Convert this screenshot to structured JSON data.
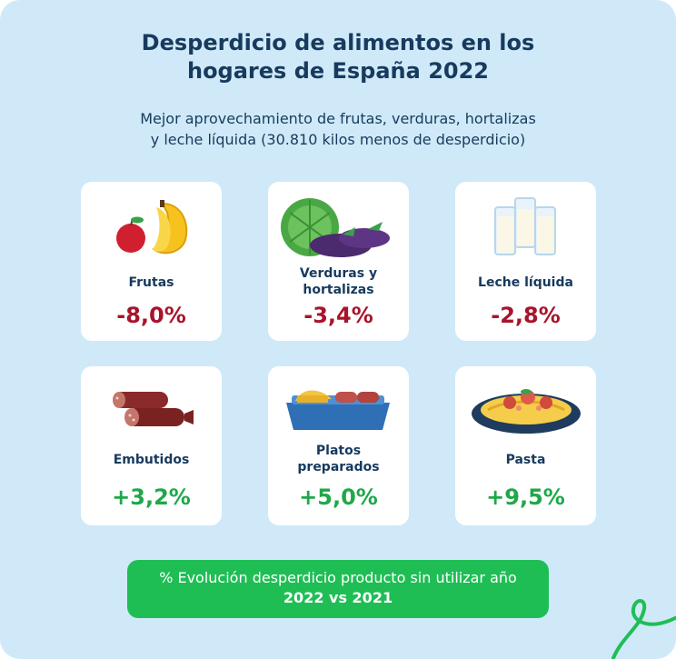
{
  "title_line1": "Desperdicio de alimentos en los",
  "title_line2": "hogares de España 2022",
  "subtitle_line1": "Mejor aprovechamiento de frutas, verduras, hortalizas",
  "subtitle_line2": "y leche líquida (30.810 kilos menos de desperdicio)",
  "items": [
    {
      "label_line1": "Frutas",
      "label_line2": "",
      "value": "-8,0%",
      "icon": "fruit-icon"
    },
    {
      "label_line1": "Verduras y",
      "label_line2": "hortalizas",
      "value": "-3,4%",
      "icon": "vegetables-icon"
    },
    {
      "label_line1": "Leche líquida",
      "label_line2": "",
      "value": "-2,8%",
      "icon": "milk-icon"
    },
    {
      "label_line1": "Embutidos",
      "label_line2": "",
      "value": "+3,2%",
      "icon": "sausage-icon"
    },
    {
      "label_line1": "Platos",
      "label_line2": "preparados",
      "value": "+5,0%",
      "icon": "ready-meal-icon"
    },
    {
      "label_line1": "Pasta",
      "label_line2": "",
      "value": "+9,5%",
      "icon": "pasta-icon"
    }
  ],
  "footer_line1": "% Evolución desperdicio producto sin utilizar año",
  "footer_line2": "2022 vs 2021",
  "colors": {
    "background": "#cfe9f8",
    "title": "#173a5e",
    "negative": "#a8142a",
    "positive": "#1fa84a",
    "footer": "#1fbe55"
  }
}
